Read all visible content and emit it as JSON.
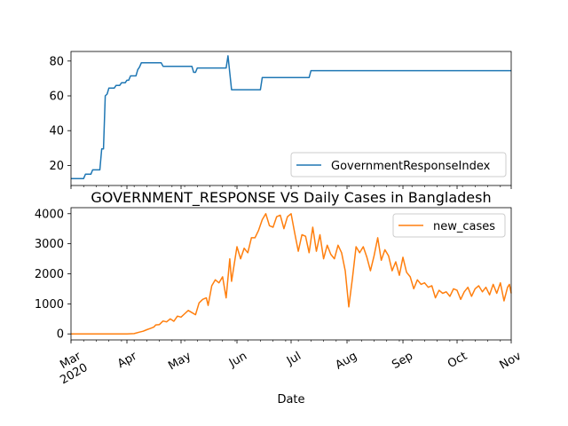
{
  "chart_data": [
    {
      "type": "line",
      "title": "",
      "xlabel": "",
      "ylabel": "",
      "x_range": [
        "2020-03-01",
        "2020-10-31"
      ],
      "ylim": [
        8.5,
        85.5
      ],
      "yticks": [
        20,
        40,
        60,
        80
      ],
      "grid": false,
      "legend_position": "lower right",
      "series": [
        {
          "name": "GovernmentResponseIndex",
          "color": "#1f77b4",
          "step_points": [
            [
              "2020-03-01",
              12.5
            ],
            [
              "2020-03-08",
              12.5
            ],
            [
              "2020-03-09",
              15.0
            ],
            [
              "2020-03-12",
              15.0
            ],
            [
              "2020-03-13",
              17.5
            ],
            [
              "2020-03-17",
              17.5
            ],
            [
              "2020-03-18",
              29.5
            ],
            [
              "2020-03-19",
              29.5
            ],
            [
              "2020-03-20",
              60.0
            ],
            [
              "2020-03-21",
              61.0
            ],
            [
              "2020-03-22",
              64.5
            ],
            [
              "2020-03-25",
              64.5
            ],
            [
              "2020-03-26",
              66.0
            ],
            [
              "2020-03-28",
              66.0
            ],
            [
              "2020-03-29",
              67.5
            ],
            [
              "2020-03-31",
              67.5
            ],
            [
              "2020-04-01",
              69.0
            ],
            [
              "2020-04-02",
              69.0
            ],
            [
              "2020-04-03",
              71.5
            ],
            [
              "2020-04-06",
              71.5
            ],
            [
              "2020-04-07",
              75.0
            ],
            [
              "2020-04-08",
              76.5
            ],
            [
              "2020-04-09",
              79.0
            ],
            [
              "2020-04-20",
              79.0
            ],
            [
              "2020-04-21",
              77.0
            ],
            [
              "2020-05-07",
              77.0
            ],
            [
              "2020-05-08",
              73.5
            ],
            [
              "2020-05-09",
              73.5
            ],
            [
              "2020-05-10",
              76.0
            ],
            [
              "2020-05-26",
              76.0
            ],
            [
              "2020-05-27",
              83.0
            ],
            [
              "2020-05-29",
              63.5
            ],
            [
              "2020-06-14",
              63.5
            ],
            [
              "2020-06-15",
              70.5
            ],
            [
              "2020-07-11",
              70.5
            ],
            [
              "2020-07-12",
              74.5
            ],
            [
              "2020-10-31",
              74.5
            ]
          ]
        }
      ]
    },
    {
      "type": "line",
      "title": "GOVERNMENT_RESPONSE VS Daily Cases in Bangladesh",
      "xlabel": "Date",
      "ylabel": "",
      "x_range": [
        "2020-03-01",
        "2020-10-31"
      ],
      "ylim": [
        -200,
        4200
      ],
      "yticks": [
        0,
        1000,
        2000,
        3000,
        4000
      ],
      "xtick_labels": [
        "Mar\n2020",
        "Apr",
        "May",
        "Jun",
        "Jul",
        "Aug",
        "Sep",
        "Oct",
        "Nov"
      ],
      "xtick_dates": [
        "2020-03-01",
        "2020-04-01",
        "2020-05-01",
        "2020-06-01",
        "2020-07-01",
        "2020-08-01",
        "2020-09-01",
        "2020-10-01",
        "2020-11-01"
      ],
      "grid": false,
      "legend_position": "upper right",
      "series": [
        {
          "name": "new_cases",
          "color": "#ff7f0e",
          "points": [
            [
              "2020-03-01",
              0
            ],
            [
              "2020-03-20",
              0
            ],
            [
              "2020-04-01",
              2
            ],
            [
              "2020-04-05",
              10
            ],
            [
              "2020-04-08",
              60
            ],
            [
              "2020-04-10",
              90
            ],
            [
              "2020-04-12",
              140
            ],
            [
              "2020-04-14",
              180
            ],
            [
              "2020-04-16",
              230
            ],
            [
              "2020-04-17",
              300
            ],
            [
              "2020-04-19",
              310
            ],
            [
              "2020-04-21",
              430
            ],
            [
              "2020-04-23",
              400
            ],
            [
              "2020-04-25",
              500
            ],
            [
              "2020-04-27",
              420
            ],
            [
              "2020-04-29",
              590
            ],
            [
              "2020-05-01",
              560
            ],
            [
              "2020-05-03",
              670
            ],
            [
              "2020-05-05",
              780
            ],
            [
              "2020-05-07",
              710
            ],
            [
              "2020-05-09",
              640
            ],
            [
              "2020-05-11",
              1030
            ],
            [
              "2020-05-13",
              1150
            ],
            [
              "2020-05-15",
              1200
            ],
            [
              "2020-05-16",
              950
            ],
            [
              "2020-05-18",
              1600
            ],
            [
              "2020-05-20",
              1800
            ],
            [
              "2020-05-22",
              1700
            ],
            [
              "2020-05-24",
              1900
            ],
            [
              "2020-05-26",
              1200
            ],
            [
              "2020-05-28",
              2500
            ],
            [
              "2020-05-29",
              1750
            ],
            [
              "2020-06-01",
              2900
            ],
            [
              "2020-06-03",
              2500
            ],
            [
              "2020-06-05",
              2850
            ],
            [
              "2020-06-07",
              2700
            ],
            [
              "2020-06-09",
              3200
            ],
            [
              "2020-06-11",
              3200
            ],
            [
              "2020-06-13",
              3450
            ],
            [
              "2020-06-15",
              3800
            ],
            [
              "2020-06-17",
              4000
            ],
            [
              "2020-06-19",
              3600
            ],
            [
              "2020-06-21",
              3550
            ],
            [
              "2020-06-23",
              3900
            ],
            [
              "2020-06-25",
              3950
            ],
            [
              "2020-06-27",
              3500
            ],
            [
              "2020-06-29",
              3900
            ],
            [
              "2020-07-01",
              4000
            ],
            [
              "2020-07-03",
              3350
            ],
            [
              "2020-07-05",
              2750
            ],
            [
              "2020-07-07",
              3300
            ],
            [
              "2020-07-09",
              3250
            ],
            [
              "2020-07-11",
              2700
            ],
            [
              "2020-07-13",
              3550
            ],
            [
              "2020-07-15",
              2750
            ],
            [
              "2020-07-17",
              3300
            ],
            [
              "2020-07-19",
              2500
            ],
            [
              "2020-07-21",
              2950
            ],
            [
              "2020-07-23",
              2650
            ],
            [
              "2020-07-25",
              2500
            ],
            [
              "2020-07-27",
              2950
            ],
            [
              "2020-07-29",
              2700
            ],
            [
              "2020-07-31",
              2100
            ],
            [
              "2020-08-02",
              900
            ],
            [
              "2020-08-04",
              1850
            ],
            [
              "2020-08-06",
              2900
            ],
            [
              "2020-08-08",
              2700
            ],
            [
              "2020-08-10",
              2900
            ],
            [
              "2020-08-12",
              2550
            ],
            [
              "2020-08-14",
              2100
            ],
            [
              "2020-08-16",
              2600
            ],
            [
              "2020-08-18",
              3200
            ],
            [
              "2020-08-20",
              2450
            ],
            [
              "2020-08-22",
              2800
            ],
            [
              "2020-08-24",
              2600
            ],
            [
              "2020-08-26",
              2100
            ],
            [
              "2020-08-28",
              2400
            ],
            [
              "2020-08-30",
              1950
            ],
            [
              "2020-09-01",
              2550
            ],
            [
              "2020-09-03",
              2050
            ],
            [
              "2020-09-05",
              1900
            ],
            [
              "2020-09-07",
              1500
            ],
            [
              "2020-09-09",
              1800
            ],
            [
              "2020-09-11",
              1650
            ],
            [
              "2020-09-13",
              1700
            ],
            [
              "2020-09-15",
              1550
            ],
            [
              "2020-09-17",
              1600
            ],
            [
              "2020-09-19",
              1200
            ],
            [
              "2020-09-21",
              1450
            ],
            [
              "2020-09-23",
              1350
            ],
            [
              "2020-09-25",
              1400
            ],
            [
              "2020-09-27",
              1250
            ],
            [
              "2020-09-29",
              1500
            ],
            [
              "2020-10-01",
              1450
            ],
            [
              "2020-10-03",
              1150
            ],
            [
              "2020-10-05",
              1400
            ],
            [
              "2020-10-07",
              1550
            ],
            [
              "2020-10-09",
              1250
            ],
            [
              "2020-10-11",
              1500
            ],
            [
              "2020-10-13",
              1600
            ],
            [
              "2020-10-15",
              1400
            ],
            [
              "2020-10-17",
              1550
            ],
            [
              "2020-10-19",
              1300
            ],
            [
              "2020-10-21",
              1650
            ],
            [
              "2020-10-23",
              1350
            ],
            [
              "2020-10-25",
              1700
            ],
            [
              "2020-10-27",
              1100
            ],
            [
              "2020-10-29",
              1550
            ],
            [
              "2020-10-30",
              1650
            ],
            [
              "2020-10-31",
              1350
            ]
          ]
        }
      ]
    }
  ]
}
